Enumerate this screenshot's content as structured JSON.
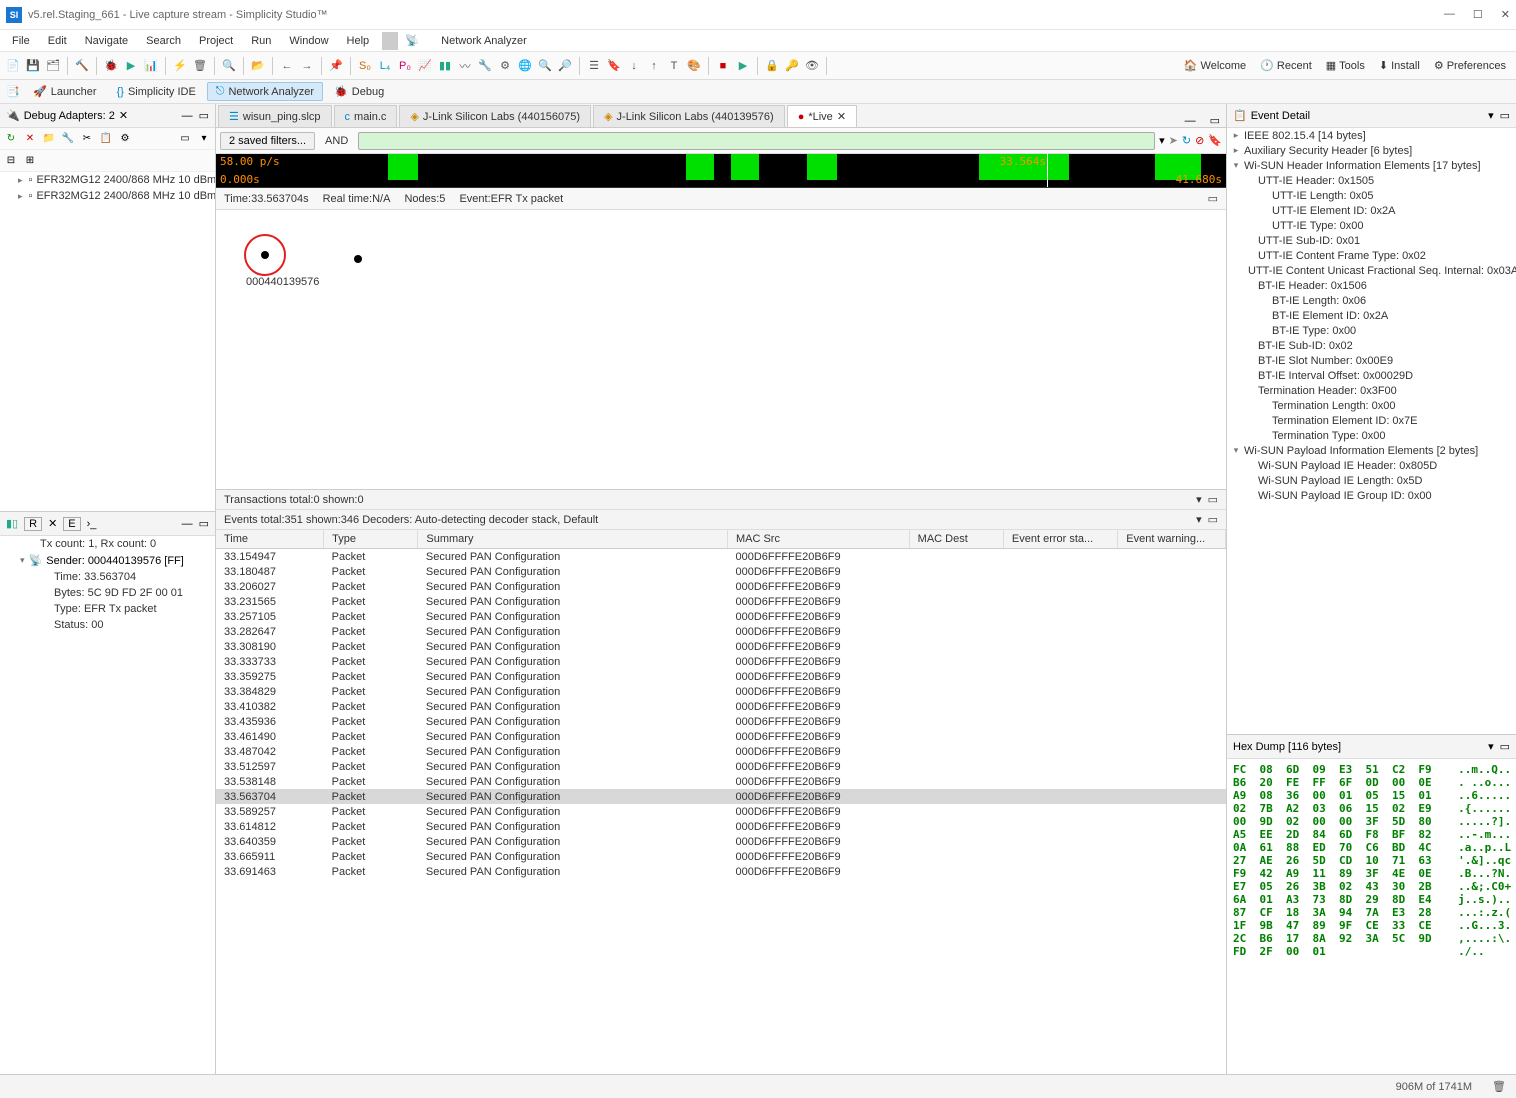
{
  "window": {
    "title": "v5.rel.Staging_661 - Live capture stream - Simplicity Studio™"
  },
  "menu": [
    "File",
    "Edit",
    "Navigate",
    "Search",
    "Project",
    "Run",
    "Window",
    "Help"
  ],
  "network_analyzer_label": "Network Analyzer",
  "toolbar_right": [
    {
      "icon": "home",
      "label": "Welcome"
    },
    {
      "icon": "clock",
      "label": "Recent"
    },
    {
      "icon": "grid",
      "label": "Tools"
    },
    {
      "icon": "download",
      "label": "Install"
    },
    {
      "icon": "gear",
      "label": "Preferences"
    }
  ],
  "perspectives": [
    {
      "icon": "rocket",
      "label": "Launcher",
      "active": false
    },
    {
      "icon": "braces",
      "label": "Simplicity IDE",
      "active": false
    },
    {
      "icon": "network",
      "label": "Network Analyzer",
      "active": true
    },
    {
      "icon": "bug",
      "label": "Debug",
      "active": false
    }
  ],
  "debug_adapters": {
    "title": "Debug Adapters: 2",
    "items": [
      "EFR32MG12 2400/868 MHz 10 dBm RB",
      "EFR32MG12 2400/868 MHz 10 dBm RB"
    ]
  },
  "sender_panel": {
    "header_icons": [
      "R",
      "E"
    ],
    "count_line": "Tx count: 1, Rx count: 0",
    "sender": "Sender: 000440139576 [FF]",
    "time": "Time: 33.563704",
    "bytes": "Bytes: 5C 9D FD 2F 00 01",
    "type": "Type: EFR Tx packet",
    "status": "Status: 00"
  },
  "editor_tabs": [
    {
      "label": "wisun_ping.slcp",
      "active": false
    },
    {
      "label": "main.c",
      "active": false
    },
    {
      "label": "J-Link Silicon Labs (440156075)",
      "active": false
    },
    {
      "label": "J-Link Silicon Labs (440139576)",
      "active": false
    },
    {
      "label": "*Live",
      "active": true
    }
  ],
  "filter": {
    "saved": "2 saved filters...",
    "and": "AND"
  },
  "timeline": {
    "rate": "58.00 p/s",
    "start": "0.000s",
    "marker": "33.564s",
    "end": "41.680s",
    "bands": [
      {
        "left_pct": 17.0,
        "width_pct": 3.0
      },
      {
        "left_pct": 46.5,
        "width_pct": 2.8
      },
      {
        "left_pct": 51.0,
        "width_pct": 2.8
      },
      {
        "left_pct": 58.5,
        "width_pct": 3.0
      },
      {
        "left_pct": 75.5,
        "width_pct": 9.0
      },
      {
        "left_pct": 93.0,
        "width_pct": 4.5
      }
    ]
  },
  "info_bar": {
    "time": "Time:33.563704s",
    "real": "Real time:N/A",
    "nodes": "Nodes:5",
    "event": "Event:EFR Tx packet"
  },
  "map": {
    "node_label": "000440139576"
  },
  "transactions_header": "Transactions    total:0 shown:0",
  "events_header": "Events    total:351 shown:346    Decoders: Auto-detecting decoder stack, Default",
  "event_columns": [
    "Time",
    "Type",
    "Summary",
    "MAC Src",
    "MAC Dest",
    "Event error sta...",
    "Event warning..."
  ],
  "events": [
    {
      "time": "33.154947",
      "type": "Packet",
      "summary": "Secured PAN Configuration",
      "src": "000D6FFFFE20B6F9",
      "sel": false
    },
    {
      "time": "33.180487",
      "type": "Packet",
      "summary": "Secured PAN Configuration",
      "src": "000D6FFFFE20B6F9",
      "sel": false
    },
    {
      "time": "33.206027",
      "type": "Packet",
      "summary": "Secured PAN Configuration",
      "src": "000D6FFFFE20B6F9",
      "sel": false
    },
    {
      "time": "33.231565",
      "type": "Packet",
      "summary": "Secured PAN Configuration",
      "src": "000D6FFFFE20B6F9",
      "sel": false
    },
    {
      "time": "33.257105",
      "type": "Packet",
      "summary": "Secured PAN Configuration",
      "src": "000D6FFFFE20B6F9",
      "sel": false
    },
    {
      "time": "33.282647",
      "type": "Packet",
      "summary": "Secured PAN Configuration",
      "src": "000D6FFFFE20B6F9",
      "sel": false
    },
    {
      "time": "33.308190",
      "type": "Packet",
      "summary": "Secured PAN Configuration",
      "src": "000D6FFFFE20B6F9",
      "sel": false
    },
    {
      "time": "33.333733",
      "type": "Packet",
      "summary": "Secured PAN Configuration",
      "src": "000D6FFFFE20B6F9",
      "sel": false
    },
    {
      "time": "33.359275",
      "type": "Packet",
      "summary": "Secured PAN Configuration",
      "src": "000D6FFFFE20B6F9",
      "sel": false
    },
    {
      "time": "33.384829",
      "type": "Packet",
      "summary": "Secured PAN Configuration",
      "src": "000D6FFFFE20B6F9",
      "sel": false
    },
    {
      "time": "33.410382",
      "type": "Packet",
      "summary": "Secured PAN Configuration",
      "src": "000D6FFFFE20B6F9",
      "sel": false
    },
    {
      "time": "33.435936",
      "type": "Packet",
      "summary": "Secured PAN Configuration",
      "src": "000D6FFFFE20B6F9",
      "sel": false
    },
    {
      "time": "33.461490",
      "type": "Packet",
      "summary": "Secured PAN Configuration",
      "src": "000D6FFFFE20B6F9",
      "sel": false
    },
    {
      "time": "33.487042",
      "type": "Packet",
      "summary": "Secured PAN Configuration",
      "src": "000D6FFFFE20B6F9",
      "sel": false
    },
    {
      "time": "33.512597",
      "type": "Packet",
      "summary": "Secured PAN Configuration",
      "src": "000D6FFFFE20B6F9",
      "sel": false
    },
    {
      "time": "33.538148",
      "type": "Packet",
      "summary": "Secured PAN Configuration",
      "src": "000D6FFFFE20B6F9",
      "sel": false
    },
    {
      "time": "33.563704",
      "type": "Packet",
      "summary": "Secured PAN Configuration",
      "src": "000D6FFFFE20B6F9",
      "sel": true
    },
    {
      "time": "33.589257",
      "type": "Packet",
      "summary": "Secured PAN Configuration",
      "src": "000D6FFFFE20B6F9",
      "sel": false
    },
    {
      "time": "33.614812",
      "type": "Packet",
      "summary": "Secured PAN Configuration",
      "src": "000D6FFFFE20B6F9",
      "sel": false
    },
    {
      "time": "33.640359",
      "type": "Packet",
      "summary": "Secured PAN Configuration",
      "src": "000D6FFFFE20B6F9",
      "sel": false
    },
    {
      "time": "33.665911",
      "type": "Packet",
      "summary": "Secured PAN Configuration",
      "src": "000D6FFFFE20B6F9",
      "sel": false
    },
    {
      "time": "33.691463",
      "type": "Packet",
      "summary": "Secured PAN Configuration",
      "src": "000D6FFFFE20B6F9",
      "sel": false
    }
  ],
  "event_detail": {
    "title": "Event Detail",
    "tree": [
      {
        "ind": 0,
        "tw": "▸",
        "label": "IEEE 802.15.4 [14 bytes]"
      },
      {
        "ind": 0,
        "tw": "▸",
        "label": "Auxiliary Security Header [6 bytes]"
      },
      {
        "ind": 0,
        "tw": "▾",
        "label": "Wi-SUN Header Information Elements [17 bytes]"
      },
      {
        "ind": 1,
        "tw": "",
        "label": "UTT-IE Header: 0x1505"
      },
      {
        "ind": 2,
        "tw": "",
        "label": "UTT-IE Length: 0x05"
      },
      {
        "ind": 2,
        "tw": "",
        "label": "UTT-IE Element ID: 0x2A"
      },
      {
        "ind": 2,
        "tw": "",
        "label": "UTT-IE Type: 0x00"
      },
      {
        "ind": 1,
        "tw": "",
        "label": "UTT-IE Sub-ID: 0x01"
      },
      {
        "ind": 1,
        "tw": "",
        "label": "UTT-IE Content Frame Type: 0x02"
      },
      {
        "ind": 1,
        "tw": "",
        "label": "UTT-IE Content Unicast Fractional Seq. Internal: 0x03A"
      },
      {
        "ind": 1,
        "tw": "",
        "label": "BT-IE Header: 0x1506"
      },
      {
        "ind": 2,
        "tw": "",
        "label": "BT-IE Length: 0x06"
      },
      {
        "ind": 2,
        "tw": "",
        "label": "BT-IE Element ID: 0x2A"
      },
      {
        "ind": 2,
        "tw": "",
        "label": "BT-IE Type: 0x00"
      },
      {
        "ind": 1,
        "tw": "",
        "label": "BT-IE Sub-ID: 0x02"
      },
      {
        "ind": 1,
        "tw": "",
        "label": "BT-IE Slot Number: 0x00E9"
      },
      {
        "ind": 1,
        "tw": "",
        "label": "BT-IE Interval Offset: 0x00029D"
      },
      {
        "ind": 1,
        "tw": "",
        "label": "Termination Header: 0x3F00"
      },
      {
        "ind": 2,
        "tw": "",
        "label": "Termination Length: 0x00"
      },
      {
        "ind": 2,
        "tw": "",
        "label": "Termination Element ID: 0x7E"
      },
      {
        "ind": 2,
        "tw": "",
        "label": "Termination Type: 0x00"
      },
      {
        "ind": 0,
        "tw": "▾",
        "label": "Wi-SUN Payload Information Elements [2 bytes]"
      },
      {
        "ind": 1,
        "tw": "",
        "label": "Wi-SUN Payload IE Header: 0x805D"
      },
      {
        "ind": 1,
        "tw": "",
        "label": "Wi-SUN Payload IE Length: 0x5D"
      },
      {
        "ind": 1,
        "tw": "",
        "label": "Wi-SUN Payload IE Group ID: 0x00"
      }
    ]
  },
  "hex": {
    "title": "Hex Dump [116 bytes]",
    "lines": [
      "FC  08  6D  09  E3  51  C2  F9    ..m..Q..",
      "B6  20  FE  FF  6F  0D  00  0E    . ..o...",
      "A9  08  36  00  01  05  15  01    ..6.....",
      "02  7B  A2  03  06  15  02  E9    .{......",
      "00  9D  02  00  00  3F  5D  80    .....?].",
      "A5  EE  2D  84  6D  F8  BF  82    ..-.m...",
      "0A  61  88  ED  70  C6  BD  4C    .a..p..L",
      "27  AE  26  5D  CD  10  71  63    '.&]..qc",
      "F9  42  A9  11  89  3F  4E  0E    .B...?N.",
      "E7  05  26  3B  02  43  30  2B    ..&;.C0+",
      "6A  01  A3  73  8D  29  8D  E4    j..s.)..",
      "87  CF  18  3A  94  7A  E3  28    ...:.z.(",
      "1F  9B  47  89  9F  CE  33  CE    ..G...3.",
      "2C  B6  17  8A  92  3A  5C  9D    ,....:\\.",
      "FD  2F  00  01                    ./.."
    ]
  },
  "statusbar": {
    "memory": "906M of 1741M"
  },
  "colors": {
    "accent": "#1976d2",
    "timeline_bg": "#000000",
    "timeline_band": "#00e000",
    "timeline_text": "#ff9000",
    "selection": "#d8d8d8",
    "filter_bg": "#d5f5d5",
    "hex_text": "#008000",
    "node_ring": "#e02020"
  }
}
